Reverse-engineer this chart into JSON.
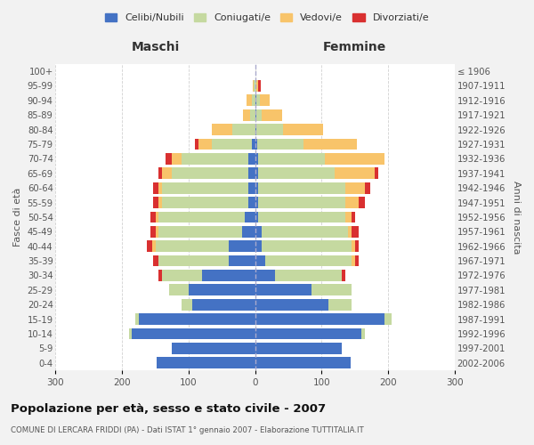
{
  "age_groups": [
    "0-4",
    "5-9",
    "10-14",
    "15-19",
    "20-24",
    "25-29",
    "30-34",
    "35-39",
    "40-44",
    "45-49",
    "50-54",
    "55-59",
    "60-64",
    "65-69",
    "70-74",
    "75-79",
    "80-84",
    "85-89",
    "90-94",
    "95-99",
    "100+"
  ],
  "birth_years": [
    "2002-2006",
    "1997-2001",
    "1992-1996",
    "1987-1991",
    "1982-1986",
    "1977-1981",
    "1972-1976",
    "1967-1971",
    "1962-1966",
    "1957-1961",
    "1952-1956",
    "1947-1951",
    "1942-1946",
    "1937-1941",
    "1932-1936",
    "1927-1931",
    "1922-1926",
    "1917-1921",
    "1912-1916",
    "1907-1911",
    "≤ 1906"
  ],
  "colors": {
    "celibe": "#4472C4",
    "coniugato": "#C5D9A0",
    "vedovo": "#F8C46A",
    "divorziato": "#D93030"
  },
  "maschi": {
    "celibe": [
      148,
      125,
      185,
      175,
      95,
      100,
      80,
      40,
      40,
      20,
      15,
      10,
      10,
      10,
      10,
      5,
      0,
      0,
      0,
      0,
      0
    ],
    "coniugato": [
      0,
      0,
      5,
      5,
      15,
      30,
      60,
      105,
      110,
      125,
      130,
      130,
      130,
      115,
      100,
      60,
      35,
      8,
      5,
      2,
      0
    ],
    "vedovo": [
      0,
      0,
      0,
      0,
      0,
      0,
      0,
      0,
      5,
      5,
      5,
      5,
      5,
      15,
      15,
      20,
      30,
      10,
      8,
      2,
      0
    ],
    "divorziato": [
      0,
      0,
      0,
      0,
      0,
      0,
      5,
      8,
      8,
      8,
      8,
      8,
      8,
      5,
      10,
      5,
      0,
      0,
      0,
      0,
      0
    ]
  },
  "femmine": {
    "nubile": [
      143,
      130,
      160,
      195,
      110,
      85,
      30,
      15,
      10,
      10,
      5,
      5,
      5,
      5,
      5,
      3,
      2,
      2,
      2,
      0,
      0
    ],
    "coniugata": [
      0,
      0,
      5,
      10,
      35,
      60,
      100,
      130,
      135,
      130,
      130,
      130,
      130,
      115,
      100,
      70,
      40,
      8,
      5,
      2,
      0
    ],
    "vedova": [
      0,
      0,
      0,
      0,
      0,
      0,
      0,
      5,
      5,
      5,
      10,
      20,
      30,
      60,
      90,
      80,
      60,
      30,
      15,
      3,
      0
    ],
    "divorziata": [
      0,
      0,
      0,
      0,
      0,
      0,
      5,
      5,
      5,
      10,
      5,
      10,
      8,
      5,
      0,
      0,
      0,
      0,
      0,
      3,
      0
    ]
  },
  "title": "Popolazione per età, sesso e stato civile - 2007",
  "subtitle": "COMUNE DI LERCARA FRIDDI (PA) - Dati ISTAT 1° gennaio 2007 - Elaborazione TUTTITALIA.IT",
  "xlabel_maschi": "Maschi",
  "xlabel_femmine": "Femmine",
  "ylabel_left": "Fasce di età",
  "ylabel_right": "Anni di nascita",
  "xlim": 300,
  "legend_labels": [
    "Celibi/Nubili",
    "Coniugati/e",
    "Vedovi/e",
    "Divorziati/e"
  ],
  "bg_color": "#F2F2F2",
  "plot_bg_color": "#FFFFFF",
  "grid_color": "#CCCCCC"
}
